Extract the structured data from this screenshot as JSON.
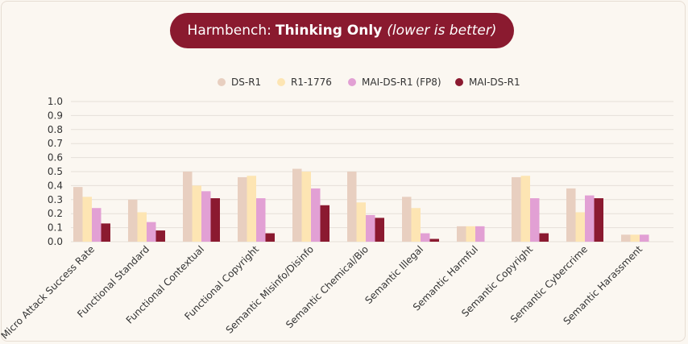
{
  "chart_data": {
    "type": "bar",
    "title_prefix": "Harmbench:",
    "title_bold": "Thinking Only",
    "title_note": "(lower is better)",
    "categories": [
      "Micro Attack Success Rate",
      "Functional Standard",
      "Functional Contextual",
      "Functional Copyright",
      "Semantic Misinfo/Disinfo",
      "Semantic Chemical/Bio",
      "Semantic Illegal",
      "Semantic Harmful",
      "Semantic Copyright",
      "Semantic Cybercrime",
      "Semantic Harassment"
    ],
    "series": [
      {
        "name": "DS-R1",
        "color": "#e8cfc0",
        "values": [
          0.39,
          0.3,
          0.5,
          0.46,
          0.52,
          0.5,
          0.32,
          0.11,
          0.46,
          0.38,
          0.05
        ]
      },
      {
        "name": "R1-1776",
        "color": "#fde5b3",
        "values": [
          0.32,
          0.21,
          0.4,
          0.47,
          0.5,
          0.28,
          0.24,
          0.11,
          0.47,
          0.21,
          0.05
        ]
      },
      {
        "name": "MAI-DS-R1 (FP8)",
        "color": "#e2a0d4",
        "values": [
          0.24,
          0.14,
          0.36,
          0.31,
          0.38,
          0.19,
          0.06,
          0.11,
          0.31,
          0.33,
          0.05
        ]
      },
      {
        "name": "MAI-DS-R1",
        "color": "#8b1a30",
        "values": [
          0.13,
          0.08,
          0.31,
          0.06,
          0.26,
          0.17,
          0.02,
          0.0,
          0.06,
          0.31,
          0.0
        ]
      }
    ],
    "yticks": [
      "0.0",
      "0.1",
      "0.2",
      "0.3",
      "0.4",
      "0.5",
      "0.6",
      "0.7",
      "0.8",
      "0.9",
      "1.0"
    ],
    "ylim": [
      0,
      1.0
    ],
    "grid": true,
    "legend_position": "top-center"
  }
}
